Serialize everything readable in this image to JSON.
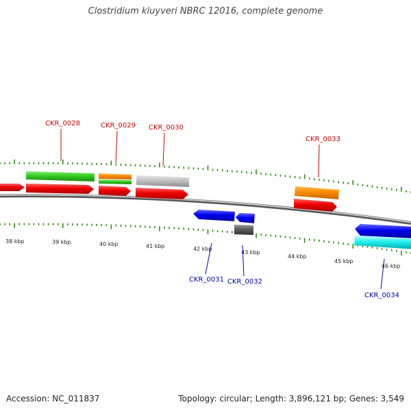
{
  "title": "Clostridium kluyveri NBRC 12016, complete genome",
  "footer": {
    "accession": "Accession: NC_011837",
    "summary": "Topology: circular; Length: 3,896,121 bp; Genes: 3,549"
  },
  "colors": {
    "forward_label": "#cc0000",
    "reverse_label": "#0000aa",
    "tick": "#2e8b12",
    "backbone": "#777777"
  },
  "scale_labels": [
    "38 kbp",
    "39 kbp",
    "40 kbp",
    "41 kbp",
    "42 kbp",
    "43 kbp",
    "44 kbp",
    "45 kbp",
    "46 kbp"
  ],
  "gene_labels": [
    {
      "text": "CKR_0028",
      "strand": "forward"
    },
    {
      "text": "CKR_0029",
      "strand": "forward"
    },
    {
      "text": "CKR_0030",
      "strand": "forward"
    },
    {
      "text": "CKR_0033",
      "strand": "forward"
    },
    {
      "text": "CKR_0031",
      "strand": "reverse"
    },
    {
      "text": "CKR_0032",
      "strand": "reverse"
    },
    {
      "text": "CKR_0034",
      "strand": "reverse"
    }
  ]
}
